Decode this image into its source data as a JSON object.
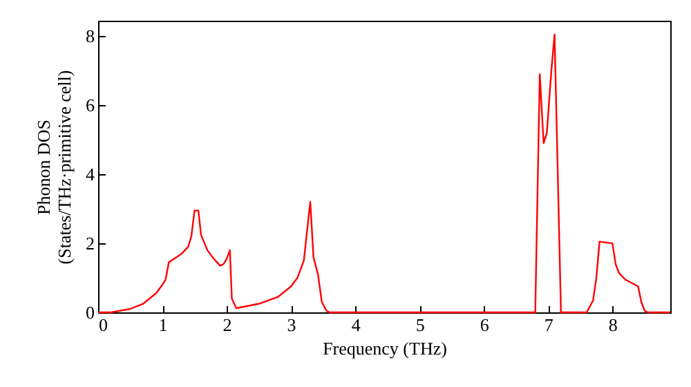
{
  "chart_data": {
    "type": "line",
    "xlabel": "Frequency (THz)",
    "ylabel": "Phonon DOS\n(States/THz·primitive cell)",
    "x": [
      0,
      0.2,
      0.5,
      0.7,
      0.9,
      1.0,
      1.05,
      1.1,
      1.3,
      1.4,
      1.45,
      1.5,
      1.56,
      1.6,
      1.7,
      1.8,
      1.9,
      1.95,
      2.0,
      2.05,
      2.08,
      2.15,
      2.5,
      2.8,
      3.0,
      3.1,
      3.2,
      3.3,
      3.35,
      3.42,
      3.48,
      3.55,
      3.6,
      6.8,
      6.87,
      6.93,
      6.98,
      7.05,
      7.1,
      7.2,
      7.6,
      7.7,
      7.75,
      7.8,
      8.0,
      8.05,
      8.1,
      8.2,
      8.3,
      8.4,
      8.45,
      8.5,
      8.55,
      8.9
    ],
    "series": [
      {
        "color": "#ff0000",
        "values": [
          0,
          0,
          0.1,
          0.25,
          0.55,
          0.8,
          0.95,
          1.45,
          1.7,
          1.9,
          2.2,
          2.95,
          2.95,
          2.25,
          1.8,
          1.55,
          1.35,
          1.4,
          1.55,
          1.8,
          0.4,
          0.12,
          0.25,
          0.45,
          0.75,
          1.0,
          1.5,
          3.2,
          1.6,
          1.1,
          0.3,
          0.05,
          0,
          0,
          6.9,
          4.9,
          5.2,
          7.0,
          8.05,
          0,
          0,
          0.35,
          1.0,
          2.05,
          2.0,
          1.4,
          1.15,
          0.95,
          0.85,
          0.75,
          0.3,
          0.05,
          0,
          0
        ]
      }
    ],
    "xlim": [
      0,
      8.9
    ],
    "xticks": [
      0,
      1,
      2,
      3,
      4,
      5,
      6,
      7,
      8
    ],
    "ylim": [
      0,
      8.45
    ],
    "yticks": [
      0,
      2,
      4,
      6,
      8
    ],
    "grid": false
  }
}
